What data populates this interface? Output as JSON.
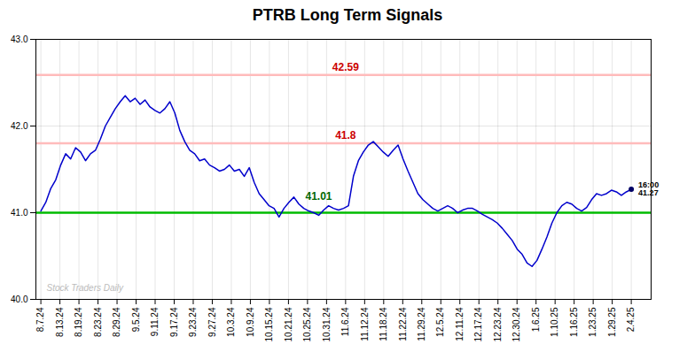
{
  "chart_data": {
    "type": "line",
    "title": "PTRB Long Term Signals",
    "x": [
      0,
      1,
      2,
      3,
      4,
      5,
      6,
      7,
      8,
      9,
      10,
      11,
      12,
      13,
      14,
      15,
      16,
      17,
      18,
      19,
      20,
      21,
      22,
      23,
      24,
      25,
      26,
      27,
      28,
      29,
      30,
      31,
      32,
      33,
      34,
      35,
      36,
      37,
      38,
      39,
      40,
      41,
      42,
      43,
      44,
      45,
      46,
      47,
      48,
      49,
      50,
      51,
      52,
      53,
      54,
      55,
      56,
      57,
      58,
      59,
      60,
      61,
      62,
      63,
      64,
      65,
      66,
      67,
      68,
      69,
      70,
      71,
      72,
      73,
      74,
      75,
      76,
      77,
      78,
      79,
      80,
      81,
      82,
      83,
      84,
      85,
      86,
      87,
      88,
      89,
      90,
      91,
      92,
      93,
      94,
      95,
      96,
      97,
      98,
      99,
      100,
      101,
      102,
      103,
      104,
      105,
      106,
      107,
      108,
      109,
      110,
      111,
      112,
      113,
      114,
      115,
      116,
      117,
      118,
      119
    ],
    "series": [
      {
        "color": "#0000cc",
        "values": [
          41.02,
          41.12,
          41.28,
          41.38,
          41.55,
          41.68,
          41.62,
          41.75,
          41.7,
          41.6,
          41.68,
          41.72,
          41.85,
          42.0,
          42.1,
          42.2,
          42.28,
          42.35,
          42.28,
          42.32,
          42.25,
          42.3,
          42.22,
          42.18,
          42.15,
          42.2,
          42.28,
          42.15,
          41.95,
          41.82,
          41.72,
          41.68,
          41.6,
          41.62,
          41.55,
          41.52,
          41.48,
          41.5,
          41.55,
          41.48,
          41.5,
          41.42,
          41.52,
          41.35,
          41.22,
          41.15,
          41.08,
          41.05,
          40.95,
          41.05,
          41.12,
          41.18,
          41.1,
          41.05,
          41.02,
          41.0,
          40.97,
          41.03,
          41.08,
          41.05,
          41.03,
          41.05,
          41.08,
          41.42,
          41.6,
          41.7,
          41.78,
          41.82,
          41.76,
          41.7,
          41.65,
          41.72,
          41.78,
          41.62,
          41.48,
          41.35,
          41.22,
          41.15,
          41.1,
          41.05,
          41.02,
          41.05,
          41.08,
          41.05,
          41.0,
          41.03,
          41.05,
          41.05,
          41.02,
          40.98,
          40.95,
          40.92,
          40.88,
          40.82,
          40.75,
          40.68,
          40.58,
          40.52,
          40.42,
          40.38,
          40.45,
          40.58,
          40.72,
          40.88,
          41.0,
          41.08,
          41.12,
          41.1,
          41.05,
          41.02,
          41.06,
          41.15,
          41.22,
          41.2,
          41.22,
          41.26,
          41.24,
          41.2,
          41.24,
          41.27
        ]
      }
    ],
    "xlim": [
      -1,
      123
    ],
    "xticks": [
      {
        "value": 0,
        "label": "8.7.24"
      },
      {
        "value": 3.8387,
        "label": "8.13.24"
      },
      {
        "value": 7.6774,
        "label": "8.19.24"
      },
      {
        "value": 11.5161,
        "label": "8.23.24"
      },
      {
        "value": 15.3548,
        "label": "8.29.24"
      },
      {
        "value": 19.1935,
        "label": "9.5.24"
      },
      {
        "value": 23.0323,
        "label": "9.11.24"
      },
      {
        "value": 26.871,
        "label": "9.17.24"
      },
      {
        "value": 30.7097,
        "label": "9.23.24"
      },
      {
        "value": 34.5484,
        "label": "9.27.24"
      },
      {
        "value": 38.3871,
        "label": "10.3.24"
      },
      {
        "value": 42.2258,
        "label": "10.9.24"
      },
      {
        "value": 46.0645,
        "label": "10.15.24"
      },
      {
        "value": 49.9032,
        "label": "10.21.24"
      },
      {
        "value": 53.7419,
        "label": "10.25.24"
      },
      {
        "value": 57.5806,
        "label": "10.31.24"
      },
      {
        "value": 61.4194,
        "label": "11.6.24"
      },
      {
        "value": 65.2581,
        "label": "11.12.24"
      },
      {
        "value": 69.0968,
        "label": "11.18.24"
      },
      {
        "value": 72.9355,
        "label": "11.22.24"
      },
      {
        "value": 76.7742,
        "label": "11.29.24"
      },
      {
        "value": 80.6129,
        "label": "12.5.24"
      },
      {
        "value": 84.4516,
        "label": "12.11.24"
      },
      {
        "value": 88.2903,
        "label": "12.17.24"
      },
      {
        "value": 92.129,
        "label": "12.23.24"
      },
      {
        "value": 95.9677,
        "label": "12.30.24"
      },
      {
        "value": 99.8065,
        "label": "1.6.25"
      },
      {
        "value": 103.6452,
        "label": "1.10.25"
      },
      {
        "value": 107.4839,
        "label": "1.16.25"
      },
      {
        "value": 111.3226,
        "label": "1.23.25"
      },
      {
        "value": 115.1613,
        "label": "1.29.25"
      },
      {
        "value": 119,
        "label": "2.4.25"
      }
    ],
    "ylim": [
      40,
      43
    ],
    "yticks": [
      40,
      41,
      42,
      43
    ],
    "grid": true,
    "hlines": [
      {
        "y": 42.59,
        "color": "#ffbbbb"
      },
      {
        "y": 41.8,
        "color": "#ffbbbb"
      },
      {
        "y": 41.0,
        "color": "#00bb00"
      }
    ],
    "annotations": [
      {
        "text": "42.59",
        "x": 61.4194,
        "y": 42.59,
        "color": "#cc0000"
      },
      {
        "text": "41.8",
        "x": 61.4194,
        "y": 41.8,
        "color": "#cc0000"
      },
      {
        "text": "41.01",
        "x": 56,
        "y": 41.1,
        "color": "#006600"
      }
    ],
    "points": [
      {
        "x": 119,
        "y": 41.27,
        "color": "#000066",
        "label": "16:00\n41.27"
      }
    ],
    "watermark": {
      "text": "Stock Traders Daily",
      "color": "#bbbbbb"
    }
  }
}
